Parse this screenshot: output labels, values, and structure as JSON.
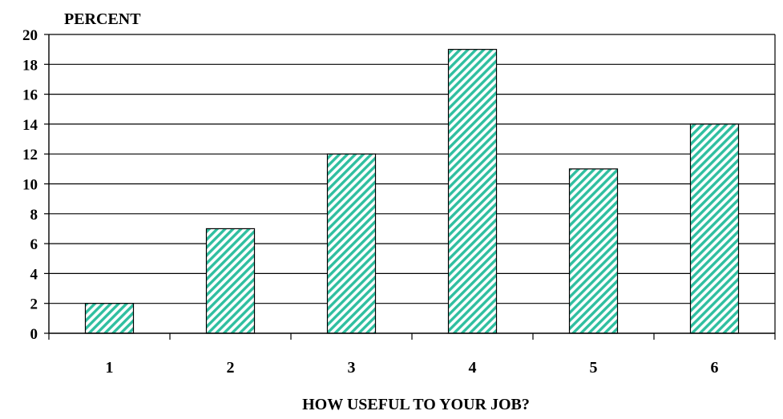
{
  "chart_data": {
    "type": "bar",
    "title": "",
    "ylabel": "PERCENT",
    "xlabel": "HOW USEFUL TO YOUR JOB?",
    "categories": [
      "1",
      "2",
      "3",
      "4",
      "5",
      "6"
    ],
    "values": [
      2,
      7,
      12,
      19,
      11,
      14
    ],
    "ylim": [
      0,
      20
    ],
    "yticks": [
      "0",
      "2",
      "4",
      "6",
      "8",
      "10",
      "12",
      "14",
      "16",
      "18",
      "20"
    ],
    "grid": "horizontal",
    "legend": "none",
    "bar_fill": "#2fbfa0",
    "bar_stroke": "#000000",
    "bar_pattern": "diagonal-hatch"
  }
}
